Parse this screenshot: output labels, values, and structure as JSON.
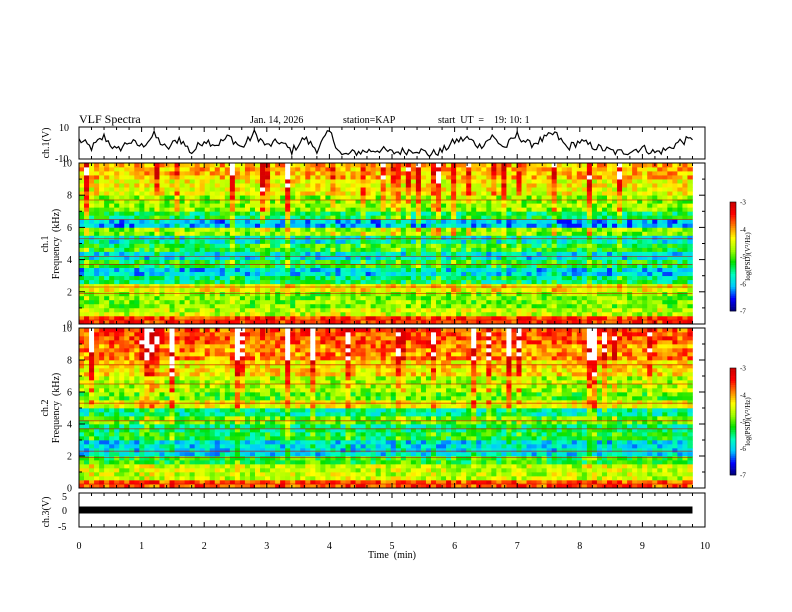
{
  "header": {
    "title": "VLF Spectra",
    "date": "Jan. 14, 2026",
    "station": "station=KAP",
    "start": "start  UT  =    19: 10: 1"
  },
  "chart_data": [
    {
      "type": "line",
      "name": "ch1-waveform",
      "ylabel": "ch.1(V)",
      "ylim": [
        -10,
        10
      ],
      "y_tick_labels": [
        "10",
        "-10"
      ],
      "x": [
        0,
        0.2,
        0.4,
        0.6,
        0.8,
        1.0,
        1.2,
        1.4,
        1.6,
        1.8,
        2.0,
        2.2,
        2.4,
        2.6,
        2.8,
        3.0,
        3.2,
        3.4,
        3.6,
        3.8,
        4.0,
        4.2,
        4.4,
        4.6,
        4.8,
        5.0,
        5.2,
        5.4,
        5.6,
        5.8,
        6.0,
        6.2,
        6.4,
        6.6,
        6.8,
        7.0,
        7.2,
        7.4,
        7.6,
        7.8,
        8.0,
        8.2,
        8.4,
        8.6,
        8.8,
        9.0,
        9.2,
        9.4,
        9.6,
        9.8
      ],
      "values": [
        2,
        -3,
        4,
        -5,
        1,
        -2,
        5,
        -4,
        3,
        -6,
        2,
        -1,
        4,
        -3,
        6,
        -2,
        1,
        -5,
        3,
        -4,
        7,
        -8,
        -6,
        -5,
        -4,
        -6,
        -5,
        -4,
        -7,
        -5,
        1,
        3,
        -2,
        4,
        -3,
        5,
        -1,
        2,
        6,
        -3,
        1,
        -2,
        -4,
        -6,
        -5,
        -3,
        -6,
        -4,
        1,
        2
      ]
    },
    {
      "type": "heatmap",
      "name": "ch1-spectrogram",
      "ylabel_lines": [
        "ch.1",
        "Frequency  (kHz)"
      ],
      "ylim": [
        0,
        10
      ],
      "y_ticks": [
        0,
        2,
        4,
        6,
        8,
        10
      ],
      "colorbar": {
        "label": "log(PSD)(V²/Hz)",
        "range": [
          -7,
          -3
        ],
        "ticks": [
          -3,
          -4,
          -5,
          -6,
          -7
        ]
      },
      "band_levels": [
        {
          "from": 0.0,
          "to": 0.5,
          "level": -3.6
        },
        {
          "from": 0.5,
          "to": 1.0,
          "level": -4.6
        },
        {
          "from": 1.0,
          "to": 2.0,
          "level": -4.9
        },
        {
          "from": 2.0,
          "to": 2.5,
          "level": -4.4
        },
        {
          "from": 2.5,
          "to": 3.0,
          "level": -5.5
        },
        {
          "from": 3.0,
          "to": 3.5,
          "level": -6.0
        },
        {
          "from": 3.5,
          "to": 4.0,
          "level": -5.3
        },
        {
          "from": 4.0,
          "to": 4.5,
          "level": -5.9
        },
        {
          "from": 4.5,
          "to": 5.0,
          "level": -5.2
        },
        {
          "from": 5.0,
          "to": 5.5,
          "level": -5.8
        },
        {
          "from": 5.5,
          "to": 6.0,
          "level": -4.8
        },
        {
          "from": 6.0,
          "to": 6.5,
          "level": -6.1
        },
        {
          "from": 6.5,
          "to": 7.0,
          "level": -5.4
        },
        {
          "from": 7.0,
          "to": 8.0,
          "level": -4.8
        },
        {
          "from": 8.0,
          "to": 9.0,
          "level": -4.4
        },
        {
          "from": 9.0,
          "to": 10.0,
          "level": -4.1
        }
      ]
    },
    {
      "type": "heatmap",
      "name": "ch2-spectrogram",
      "ylabel_lines": [
        "ch.2",
        "Frequency  (kHz)"
      ],
      "ylim": [
        0,
        10
      ],
      "y_ticks": [
        0,
        2,
        4,
        6,
        8,
        10
      ],
      "colorbar": {
        "label": "log(PSD)(V²/Hz)",
        "range": [
          -7,
          -3
        ],
        "ticks": [
          -3,
          -4,
          -5,
          -6,
          -7
        ]
      },
      "band_levels": [
        {
          "from": 0.0,
          "to": 0.5,
          "level": -3.7
        },
        {
          "from": 0.5,
          "to": 1.5,
          "level": -4.6
        },
        {
          "from": 1.5,
          "to": 2.0,
          "level": -5.2
        },
        {
          "from": 2.0,
          "to": 3.0,
          "level": -5.9
        },
        {
          "from": 3.0,
          "to": 3.5,
          "level": -5.3
        },
        {
          "from": 3.5,
          "to": 4.0,
          "level": -5.5
        },
        {
          "from": 4.0,
          "to": 4.5,
          "level": -5.0
        },
        {
          "from": 4.5,
          "to": 5.0,
          "level": -5.6
        },
        {
          "from": 5.0,
          "to": 5.5,
          "level": -4.5
        },
        {
          "from": 5.5,
          "to": 6.0,
          "level": -5.0
        },
        {
          "from": 6.0,
          "to": 7.0,
          "level": -4.7
        },
        {
          "from": 7.0,
          "to": 8.0,
          "level": -4.3
        },
        {
          "from": 8.0,
          "to": 9.0,
          "level": -3.9
        },
        {
          "from": 9.0,
          "to": 10.0,
          "level": -3.7
        }
      ]
    },
    {
      "type": "line",
      "name": "ch3-waveform",
      "ylabel": "ch.3(V)",
      "ylim": [
        -5,
        5
      ],
      "y_tick_labels": [
        "5",
        "0",
        "-5"
      ],
      "x": [
        0,
        9.8
      ],
      "values": [
        0,
        0
      ]
    }
  ],
  "x_axis": {
    "label": "Time  (min)",
    "range": [
      0,
      10
    ],
    "tick_labels": [
      "0",
      "1",
      "2",
      "3",
      "4",
      "5",
      "6",
      "7",
      "8",
      "9",
      "10"
    ]
  },
  "colors": {
    "colormap": [
      "#00007a",
      "#0000ff",
      "#00c8ff",
      "#00ffc0",
      "#00e000",
      "#a0ff00",
      "#ffff00",
      "#ff8000",
      "#ff0000",
      "#c80000",
      "#ffffff"
    ]
  }
}
